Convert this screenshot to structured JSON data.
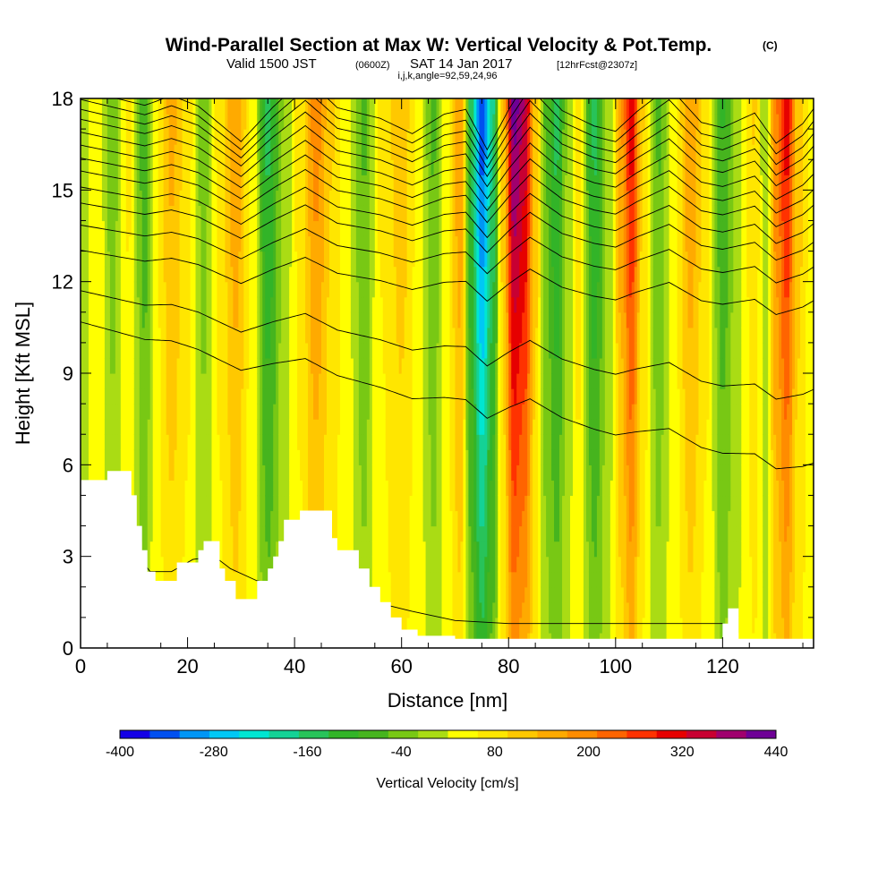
{
  "chart_data": {
    "type": "heatmap",
    "title": "Wind-Parallel Section at Max W: Vertical Velocity & Pot.Temp.",
    "title_suffix": "(C)",
    "subtitle_parts": {
      "valid": "Valid 1500 JST",
      "zulu": "(0600Z)",
      "date": "SAT 14 Jan 2017",
      "forecast": "[12hrFcst@2307z]"
    },
    "params_line": "i,j,k,angle=92,59,24,96",
    "xlabel": "Distance [nm]",
    "ylabel": "Height [Kft MSL]",
    "xlim": [
      0,
      137
    ],
    "ylim": [
      0,
      18
    ],
    "x_ticks": [
      "0",
      "20",
      "40",
      "60",
      "80",
      "100",
      "120"
    ],
    "y_ticks": [
      "0",
      "3",
      "6",
      "9",
      "12",
      "15",
      "18"
    ],
    "grid": false,
    "colorbar": {
      "label": "Vertical Velocity [cm/s]",
      "tick_labels": [
        "-400",
        "-280",
        "-160",
        "-40",
        "80",
        "200",
        "320",
        "440"
      ],
      "tick_values": [
        -400,
        -280,
        -160,
        -40,
        80,
        200,
        320,
        440
      ],
      "range": [
        -400,
        440
      ],
      "bin_colors": [
        "#1400e6",
        "#0050f0",
        "#0096f5",
        "#00c8f5",
        "#00e6d2",
        "#14d296",
        "#28c35a",
        "#32b428",
        "#46b41e",
        "#78c814",
        "#aadc14",
        "#ffff00",
        "#ffe600",
        "#ffc800",
        "#ffaa00",
        "#ff8c00",
        "#ff6400",
        "#ff3200",
        "#e60000",
        "#c80032",
        "#a0006e",
        "#6e0096"
      ]
    },
    "velocity_bands": [
      {
        "x": 0,
        "w": -40
      },
      {
        "x": 3,
        "w": 20
      },
      {
        "x": 6,
        "w": -60
      },
      {
        "x": 9,
        "w": 30
      },
      {
        "x": 12,
        "w": -100
      },
      {
        "x": 14,
        "w": 20
      },
      {
        "x": 17,
        "w": 100
      },
      {
        "x": 20,
        "w": 40
      },
      {
        "x": 23,
        "w": -60
      },
      {
        "x": 26,
        "w": 40
      },
      {
        "x": 29,
        "w": 120
      },
      {
        "x": 32,
        "w": 20
      },
      {
        "x": 35,
        "w": -150
      },
      {
        "x": 38,
        "w": -40
      },
      {
        "x": 41,
        "w": 40
      },
      {
        "x": 44,
        "w": 140
      },
      {
        "x": 47,
        "w": 60
      },
      {
        "x": 50,
        "w": 0
      },
      {
        "x": 53,
        "w": -80
      },
      {
        "x": 56,
        "w": 30
      },
      {
        "x": 60,
        "w": 80
      },
      {
        "x": 63,
        "w": 20
      },
      {
        "x": 66,
        "w": -80
      },
      {
        "x": 68,
        "w": 0
      },
      {
        "x": 71,
        "w": 120
      },
      {
        "x": 73,
        "w": -150
      },
      {
        "x": 75,
        "w": -330
      },
      {
        "x": 77,
        "w": -180
      },
      {
        "x": 79,
        "w": 80
      },
      {
        "x": 81,
        "w": 330
      },
      {
        "x": 83,
        "w": 280
      },
      {
        "x": 85,
        "w": 80
      },
      {
        "x": 87,
        "w": -80
      },
      {
        "x": 89,
        "w": -150
      },
      {
        "x": 91,
        "w": -40
      },
      {
        "x": 93,
        "w": 40
      },
      {
        "x": 96,
        "w": -150
      },
      {
        "x": 99,
        "w": -20
      },
      {
        "x": 101,
        "w": 120
      },
      {
        "x": 103,
        "w": 240
      },
      {
        "x": 105,
        "w": 60
      },
      {
        "x": 108,
        "w": -80
      },
      {
        "x": 111,
        "w": 20
      },
      {
        "x": 114,
        "w": 120
      },
      {
        "x": 117,
        "w": 40
      },
      {
        "x": 120,
        "w": -110
      },
      {
        "x": 123,
        "w": -20
      },
      {
        "x": 126,
        "w": 60
      },
      {
        "x": 128,
        "w": -40
      },
      {
        "x": 130,
        "w": 150
      },
      {
        "x": 132,
        "w": 240
      },
      {
        "x": 134,
        "w": 80
      },
      {
        "x": 137,
        "w": 0
      }
    ],
    "terrain": [
      [
        0,
        5.5
      ],
      [
        5,
        5.5
      ],
      [
        5,
        5.8
      ],
      [
        9.5,
        5.8
      ],
      [
        9.5,
        5.0
      ],
      [
        10.5,
        5.0
      ],
      [
        10.5,
        4.0
      ],
      [
        11.5,
        4.0
      ],
      [
        11.5,
        3.2
      ],
      [
        12.5,
        3.2
      ],
      [
        12.5,
        2.5
      ],
      [
        14,
        2.5
      ],
      [
        14,
        2.2
      ],
      [
        18,
        2.2
      ],
      [
        18,
        2.8
      ],
      [
        22,
        2.8
      ],
      [
        22,
        3.2
      ],
      [
        23,
        3.2
      ],
      [
        23,
        3.5
      ],
      [
        26,
        3.5
      ],
      [
        26,
        2.6
      ],
      [
        27,
        2.6
      ],
      [
        27,
        2.2
      ],
      [
        29,
        2.2
      ],
      [
        29,
        1.6
      ],
      [
        33,
        1.6
      ],
      [
        33,
        2.2
      ],
      [
        35,
        2.2
      ],
      [
        35,
        2.6
      ],
      [
        36,
        2.6
      ],
      [
        36,
        3.0
      ],
      [
        37,
        3.0
      ],
      [
        37,
        3.5
      ],
      [
        38,
        3.5
      ],
      [
        38,
        4.2
      ],
      [
        41,
        4.2
      ],
      [
        41,
        4.5
      ],
      [
        47,
        4.5
      ],
      [
        47,
        3.6
      ],
      [
        48,
        3.6
      ],
      [
        48,
        3.2
      ],
      [
        52,
        3.2
      ],
      [
        52,
        2.6
      ],
      [
        54,
        2.6
      ],
      [
        54,
        2.0
      ],
      [
        56,
        2.0
      ],
      [
        56,
        1.5
      ],
      [
        58,
        1.5
      ],
      [
        58,
        1.0
      ],
      [
        60,
        1.0
      ],
      [
        60,
        0.6
      ],
      [
        63,
        0.6
      ],
      [
        63,
        0.4
      ],
      [
        70,
        0.4
      ],
      [
        70,
        0.3
      ],
      [
        120,
        0.3
      ],
      [
        120,
        0.8
      ],
      [
        121,
        0.8
      ],
      [
        121,
        1.3
      ],
      [
        123,
        1.3
      ],
      [
        123,
        0.3
      ],
      [
        137,
        0.3
      ]
    ],
    "isentropes": {
      "ridge_x": [
        0,
        12,
        17,
        22,
        30,
        36,
        42,
        48,
        56,
        62,
        68,
        72,
        76,
        80,
        84,
        90,
        96,
        100,
        104,
        110,
        116,
        120,
        126,
        130,
        135,
        137
      ],
      "ridge_dy": [
        0.3,
        0.0,
        0.2,
        0.0,
        -0.7,
        0.0,
        0.6,
        0.0,
        -0.2,
        -0.5,
        -0.1,
        0.0,
        -0.8,
        0.0,
        0.7,
        0.0,
        -0.3,
        -0.4,
        0.0,
        0.5,
        -0.2,
        -0.3,
        0.0,
        -0.6,
        -0.2,
        0.1
      ],
      "lines": [
        {
          "base": 10.5,
          "end": 6.0
        },
        {
          "base": 11.5,
          "end": 8.4
        },
        {
          "base": 12.8,
          "end": 11.3
        },
        {
          "base": 13.6,
          "end": 12.4
        },
        {
          "base": 14.3,
          "end": 13.2
        },
        {
          "base": 14.8,
          "end": 13.8
        },
        {
          "base": 15.3,
          "end": 14.4
        },
        {
          "base": 15.7,
          "end": 14.9
        },
        {
          "base": 16.1,
          "end": 15.4
        },
        {
          "base": 16.5,
          "end": 15.9
        },
        {
          "base": 16.9,
          "end": 16.3
        },
        {
          "base": 17.2,
          "end": 16.7
        },
        {
          "base": 17.5,
          "end": 17.1
        },
        {
          "base": 17.8,
          "end": 17.5
        }
      ],
      "low_line": [
        [
          0,
          4.2
        ],
        [
          3,
          4.0
        ],
        [
          7,
          3.5
        ],
        [
          10,
          3.2
        ],
        [
          13,
          2.5
        ],
        [
          17,
          2.5
        ],
        [
          21,
          2.9
        ],
        [
          25,
          3.0
        ],
        [
          28,
          2.6
        ],
        [
          33,
          2.2
        ],
        [
          40,
          2.0
        ],
        [
          48,
          2.0
        ],
        [
          55,
          1.5
        ],
        [
          62,
          1.2
        ],
        [
          70,
          0.9
        ],
        [
          80,
          0.8
        ],
        [
          95,
          0.8
        ],
        [
          110,
          0.8
        ],
        [
          120,
          0.8
        ]
      ]
    }
  }
}
